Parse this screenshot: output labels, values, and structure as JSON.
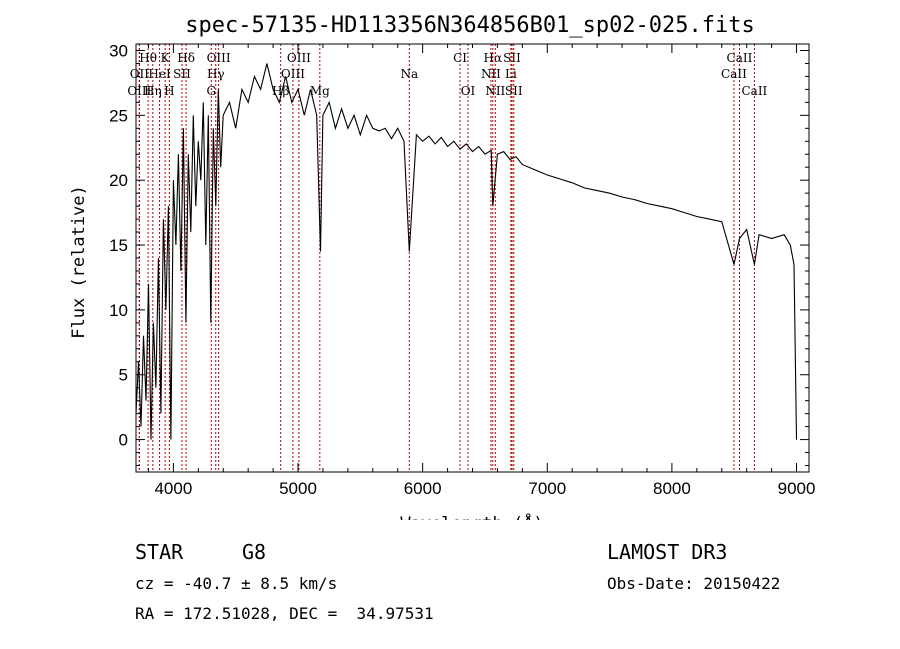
{
  "chart_data": {
    "type": "line",
    "title": "spec-57135-HD113356N364856B01_sp02-025.fits",
    "xlabel": "Wavelength (Å)",
    "ylabel": "Flux (relative)",
    "xlim": [
      3700,
      9100
    ],
    "ylim": [
      -2.5,
      30.5
    ],
    "xticks": [
      4000,
      5000,
      6000,
      7000,
      8000,
      9000
    ],
    "yticks": [
      0,
      5,
      10,
      15,
      20,
      25,
      30
    ],
    "series": [
      {
        "name": "flux",
        "x": [
          3700,
          3720,
          3740,
          3760,
          3780,
          3800,
          3820,
          3840,
          3860,
          3880,
          3900,
          3920,
          3940,
          3960,
          3980,
          4000,
          4020,
          4040,
          4060,
          4080,
          4100,
          4120,
          4140,
          4160,
          4180,
          4200,
          4220,
          4240,
          4260,
          4280,
          4300,
          4320,
          4340,
          4360,
          4380,
          4400,
          4450,
          4500,
          4550,
          4600,
          4650,
          4700,
          4750,
          4800,
          4850,
          4900,
          4950,
          5000,
          5050,
          5100,
          5150,
          5180,
          5200,
          5250,
          5300,
          5350,
          5400,
          5450,
          5500,
          5550,
          5600,
          5650,
          5700,
          5750,
          5800,
          5850,
          5893,
          5950,
          6000,
          6050,
          6100,
          6150,
          6200,
          6250,
          6300,
          6350,
          6400,
          6450,
          6500,
          6550,
          6563,
          6600,
          6650,
          6700,
          6750,
          6800,
          6900,
          7000,
          7100,
          7200,
          7300,
          7400,
          7500,
          7600,
          7700,
          7800,
          7900,
          8000,
          8100,
          8200,
          8300,
          8400,
          8498,
          8542,
          8600,
          8662,
          8700,
          8800,
          8900,
          8950,
          8980,
          9000
        ],
        "y": [
          2,
          6,
          1,
          8,
          3,
          12,
          0,
          9,
          4,
          14,
          2,
          17,
          10,
          18,
          0,
          20,
          15,
          22,
          13,
          24,
          9,
          22,
          16,
          25,
          18,
          23,
          20,
          26,
          15,
          25,
          9,
          24,
          18,
          27,
          21,
          25,
          26,
          24,
          27,
          26,
          28,
          27,
          29,
          27,
          26,
          28,
          26,
          27,
          25,
          27,
          25,
          14.5,
          25,
          26,
          24,
          25.5,
          24,
          25,
          23.5,
          25,
          24,
          23.8,
          24,
          23.2,
          24,
          23,
          14.5,
          23.5,
          23,
          23.4,
          22.8,
          23.3,
          22.6,
          23,
          22.4,
          22.8,
          22.2,
          22.6,
          22,
          22.3,
          18,
          22,
          22.2,
          21.6,
          21.8,
          21.2,
          20.8,
          20.4,
          20.1,
          19.8,
          19.4,
          19.2,
          19,
          18.7,
          18.5,
          18.2,
          18,
          17.8,
          17.5,
          17.2,
          17,
          16.8,
          13.5,
          15.5,
          16.2,
          13.5,
          15.8,
          15.5,
          15.8,
          15,
          13.5,
          0
        ]
      }
    ],
    "spectral_lines": [
      {
        "label": "Hθ",
        "wavelength": 3797,
        "row": 1
      },
      {
        "label": "K",
        "wavelength": 3934,
        "row": 1
      },
      {
        "label": "Hδ",
        "wavelength": 4102,
        "row": 1
      },
      {
        "label": "OIII",
        "wavelength": 4363,
        "row": 1
      },
      {
        "label": "OIII",
        "wavelength": 5007,
        "row": 1
      },
      {
        "label": "CI",
        "wavelength": 6300,
        "row": 1
      },
      {
        "label": "Hα",
        "wavelength": 6563,
        "row": 1
      },
      {
        "label": "SII",
        "wavelength": 6717,
        "row": 1
      },
      {
        "label": "CaII",
        "wavelength": 8542,
        "row": 1
      },
      {
        "label": "OII",
        "wavelength": 3727,
        "row": 2
      },
      {
        "label": "HeI",
        "wavelength": 3889,
        "row": 2
      },
      {
        "label": "SII",
        "wavelength": 4069,
        "row": 2
      },
      {
        "label": "Hγ",
        "wavelength": 4340,
        "row": 2
      },
      {
        "label": "OIII",
        "wavelength": 4959,
        "row": 2
      },
      {
        "label": "Na",
        "wavelength": 5893,
        "row": 2
      },
      {
        "label": "NII",
        "wavelength": 6548,
        "row": 2
      },
      {
        "label": "Li",
        "wavelength": 6708,
        "row": 2
      },
      {
        "label": "CaII",
        "wavelength": 8498,
        "row": 2
      },
      {
        "label": "OIII",
        "wavelength": 3727,
        "row": 3
      },
      {
        "label": "Hη",
        "wavelength": 3835,
        "row": 3
      },
      {
        "label": "H",
        "wavelength": 3968,
        "row": 3
      },
      {
        "label": "G",
        "wavelength": 4304,
        "row": 3
      },
      {
        "label": "Hβ",
        "wavelength": 4861,
        "row": 3
      },
      {
        "label": "Mg",
        "wavelength": 5175,
        "row": 3
      },
      {
        "label": "OI",
        "wavelength": 6364,
        "row": 3
      },
      {
        "label": "NII",
        "wavelength": 6583,
        "row": 3
      },
      {
        "label": "SII",
        "wavelength": 6731,
        "row": 3
      },
      {
        "label": "CaII",
        "wavelength": 8662,
        "row": 3
      }
    ]
  },
  "info": {
    "object_class": "STAR",
    "subclass": "G8",
    "survey": "LAMOST DR3",
    "cz": "cz = -40.7 ± 8.5 km/s",
    "obs_date": "Obs-Date: 20150422",
    "coords": "RA = 172.51028, DEC =  34.97531"
  },
  "colors": {
    "line": "#000000",
    "marker": "#b00000"
  }
}
